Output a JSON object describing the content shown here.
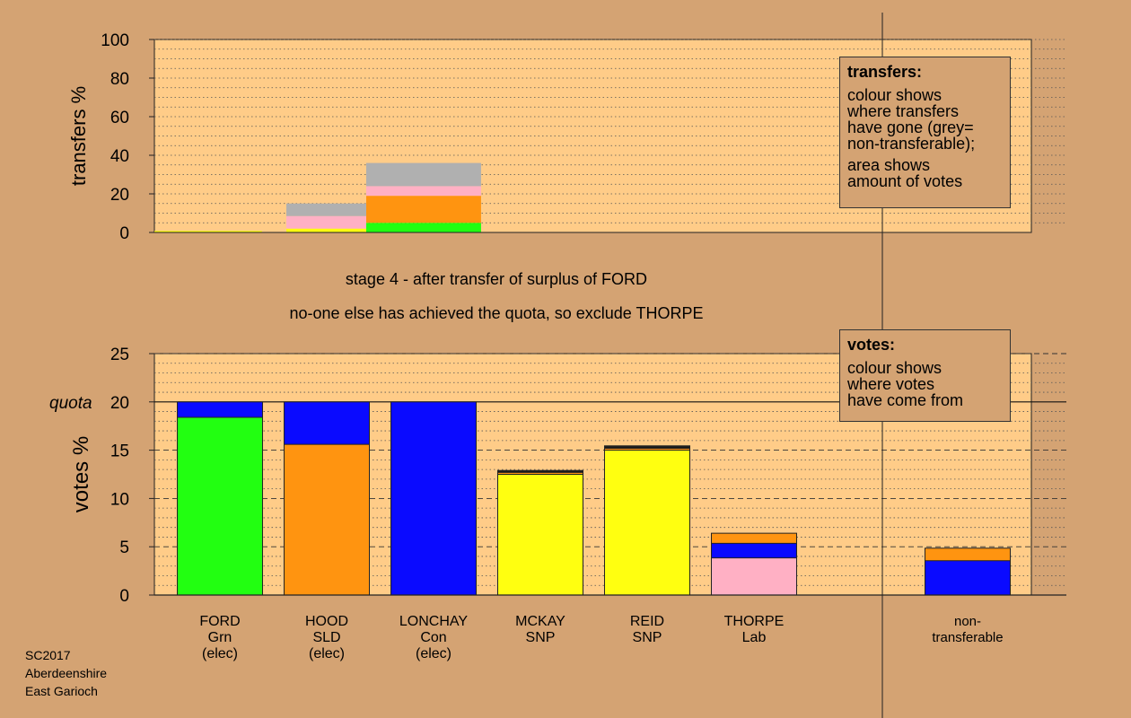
{
  "footer": {
    "lines": [
      "SC2017",
      "Aberdeenshire",
      "East Garioch"
    ]
  },
  "headline": {
    "stage": "stage 4 - after transfer of surplus of FORD",
    "action": "no-one else has achieved the quota, so exclude THORPE"
  },
  "transfers_note": {
    "title": "transfers:",
    "text1": "colour shows\nwhere transfers\nhave gone (grey=\nnon-transferable);",
    "text2": "area shows\namount of votes"
  },
  "votes_note": {
    "title": "votes:",
    "text1": "colour shows\nwhere votes\nhave come from"
  },
  "colors": {
    "Grn": "#22ff11",
    "SLD": "#ff9410",
    "Con": "#0a0aff",
    "SNP": "#ffff10",
    "Lab": "#ffb0c4",
    "nontrans": "#b0b0b0",
    "ind": "#1a1a1a",
    "plot_bg": "#ffcc88",
    "page_bg": "#d4a373"
  },
  "chart_data": [
    {
      "type": "bar",
      "stacked": true,
      "ylabel": "transfers %",
      "ylim": [
        0,
        100
      ],
      "yticks": [
        0,
        20,
        40,
        60,
        80,
        100
      ],
      "categories": [
        "FORD",
        "HOOD",
        "LONCHAY",
        "MCKAY",
        "REID",
        "THORPE"
      ],
      "bar_widths": [
        0.5,
        16,
        23,
        0,
        0,
        0
      ],
      "bars": [
        {
          "candidate": "FORD",
          "segments": [
            {
              "color": "SNP",
              "value": 0.8
            }
          ]
        },
        {
          "candidate": "HOOD",
          "segments": [
            {
              "color": "SNP",
              "value": 2
            },
            {
              "color": "Lab",
              "value": 6.5
            },
            {
              "color": "nontrans",
              "value": 6.5
            }
          ]
        },
        {
          "candidate": "LONCHAY",
          "segments": [
            {
              "color": "Grn",
              "value": 5
            },
            {
              "color": "SLD",
              "value": 14
            },
            {
              "color": "Lab",
              "value": 5
            },
            {
              "color": "nontrans",
              "value": 12
            }
          ]
        }
      ]
    },
    {
      "type": "bar",
      "stacked": true,
      "ylabel": "votes %",
      "ylim": [
        0,
        25
      ],
      "yticks": [
        0,
        5,
        10,
        15,
        20,
        25
      ],
      "quota": 20,
      "quota_label": "quota",
      "categories": [
        {
          "name": "FORD",
          "party": "Grn",
          "status": "(elec)"
        },
        {
          "name": "HOOD",
          "party": "SLD",
          "status": "(elec)"
        },
        {
          "name": "LONCHAY",
          "party": "Con",
          "status": "(elec)"
        },
        {
          "name": "MCKAY",
          "party": "SNP",
          "status": ""
        },
        {
          "name": "REID",
          "party": "SNP",
          "status": ""
        },
        {
          "name": "THORPE",
          "party": "Lab",
          "status": ""
        },
        {
          "name": "non-",
          "party": "transferable",
          "status": ""
        }
      ],
      "bars": [
        {
          "candidate": "FORD",
          "segments": [
            {
              "color": "Grn",
              "value": 18.4
            },
            {
              "color": "Con",
              "value": 1.6
            }
          ]
        },
        {
          "candidate": "HOOD",
          "segments": [
            {
              "color": "SLD",
              "value": 15.6
            },
            {
              "color": "Con",
              "value": 4.4
            }
          ]
        },
        {
          "candidate": "LONCHAY",
          "segments": [
            {
              "color": "Con",
              "value": 20
            }
          ]
        },
        {
          "candidate": "MCKAY",
          "segments": [
            {
              "color": "SNP",
              "value": 12.5
            },
            {
              "color": "SLD",
              "value": 0.2
            },
            {
              "color": "ind",
              "value": 0.15
            },
            {
              "color": "Grn",
              "value": 0.05
            }
          ]
        },
        {
          "candidate": "REID",
          "segments": [
            {
              "color": "SNP",
              "value": 15.0
            },
            {
              "color": "SLD",
              "value": 0.2
            },
            {
              "color": "ind",
              "value": 0.2
            },
            {
              "color": "Grn",
              "value": 0.05
            }
          ]
        },
        {
          "candidate": "THORPE",
          "segments": [
            {
              "color": "Lab",
              "value": 3.85
            },
            {
              "color": "Con",
              "value": 1.5
            },
            {
              "color": "SLD",
              "value": 1.05
            }
          ]
        },
        {
          "candidate": "non-transferable",
          "segments": [
            {
              "color": "Con",
              "value": 3.55
            },
            {
              "color": "SLD",
              "value": 1.3
            }
          ]
        }
      ]
    }
  ]
}
